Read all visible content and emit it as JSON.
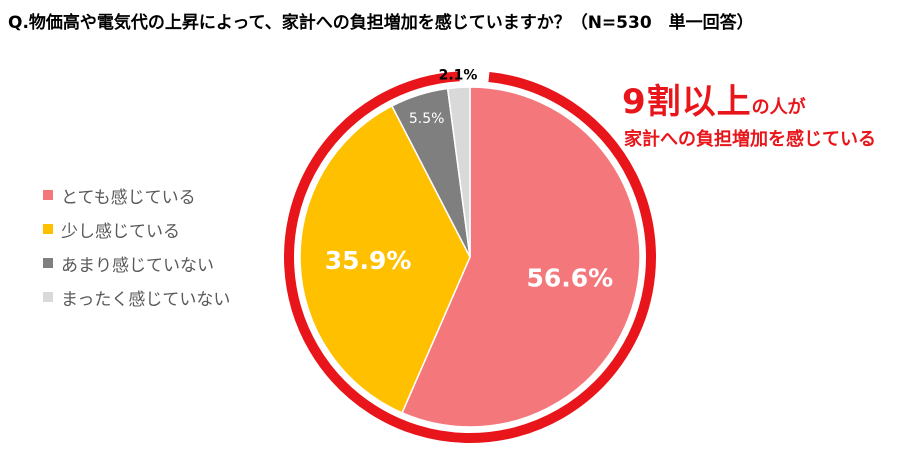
{
  "title": "Q.物価高や電気代の上昇によって、家計への負担増加を感じていますか？（N=530　単一回答）",
  "callout": {
    "line1_big": "9割以上",
    "line1_small": "の人が",
    "line2": "家計への負担増加を感じている",
    "color": "#e8151b"
  },
  "chart_data": {
    "type": "pie",
    "title": "Q.物価高や電気代の上昇によって、家計への負担増加を感じていますか？（N=530　単一回答）",
    "legend_position": "left",
    "slices": [
      {
        "label": "とても感じている",
        "value": 56.6,
        "display": "56.6%",
        "color": "#f4787b",
        "label_color": "#ffffff"
      },
      {
        "label": "少し感じている",
        "value": 35.9,
        "display": "35.9%",
        "color": "#ffc000",
        "label_color": "#ffffff"
      },
      {
        "label": "あまり感じていない",
        "value": 5.5,
        "display": "5.5%",
        "color": "#7f7f7f",
        "label_color": "#ffffff"
      },
      {
        "label": "まったく感じていない",
        "value": 2.1,
        "display": "2.1%",
        "color": "#d9d9d9",
        "label_color": "#000000"
      }
    ]
  }
}
